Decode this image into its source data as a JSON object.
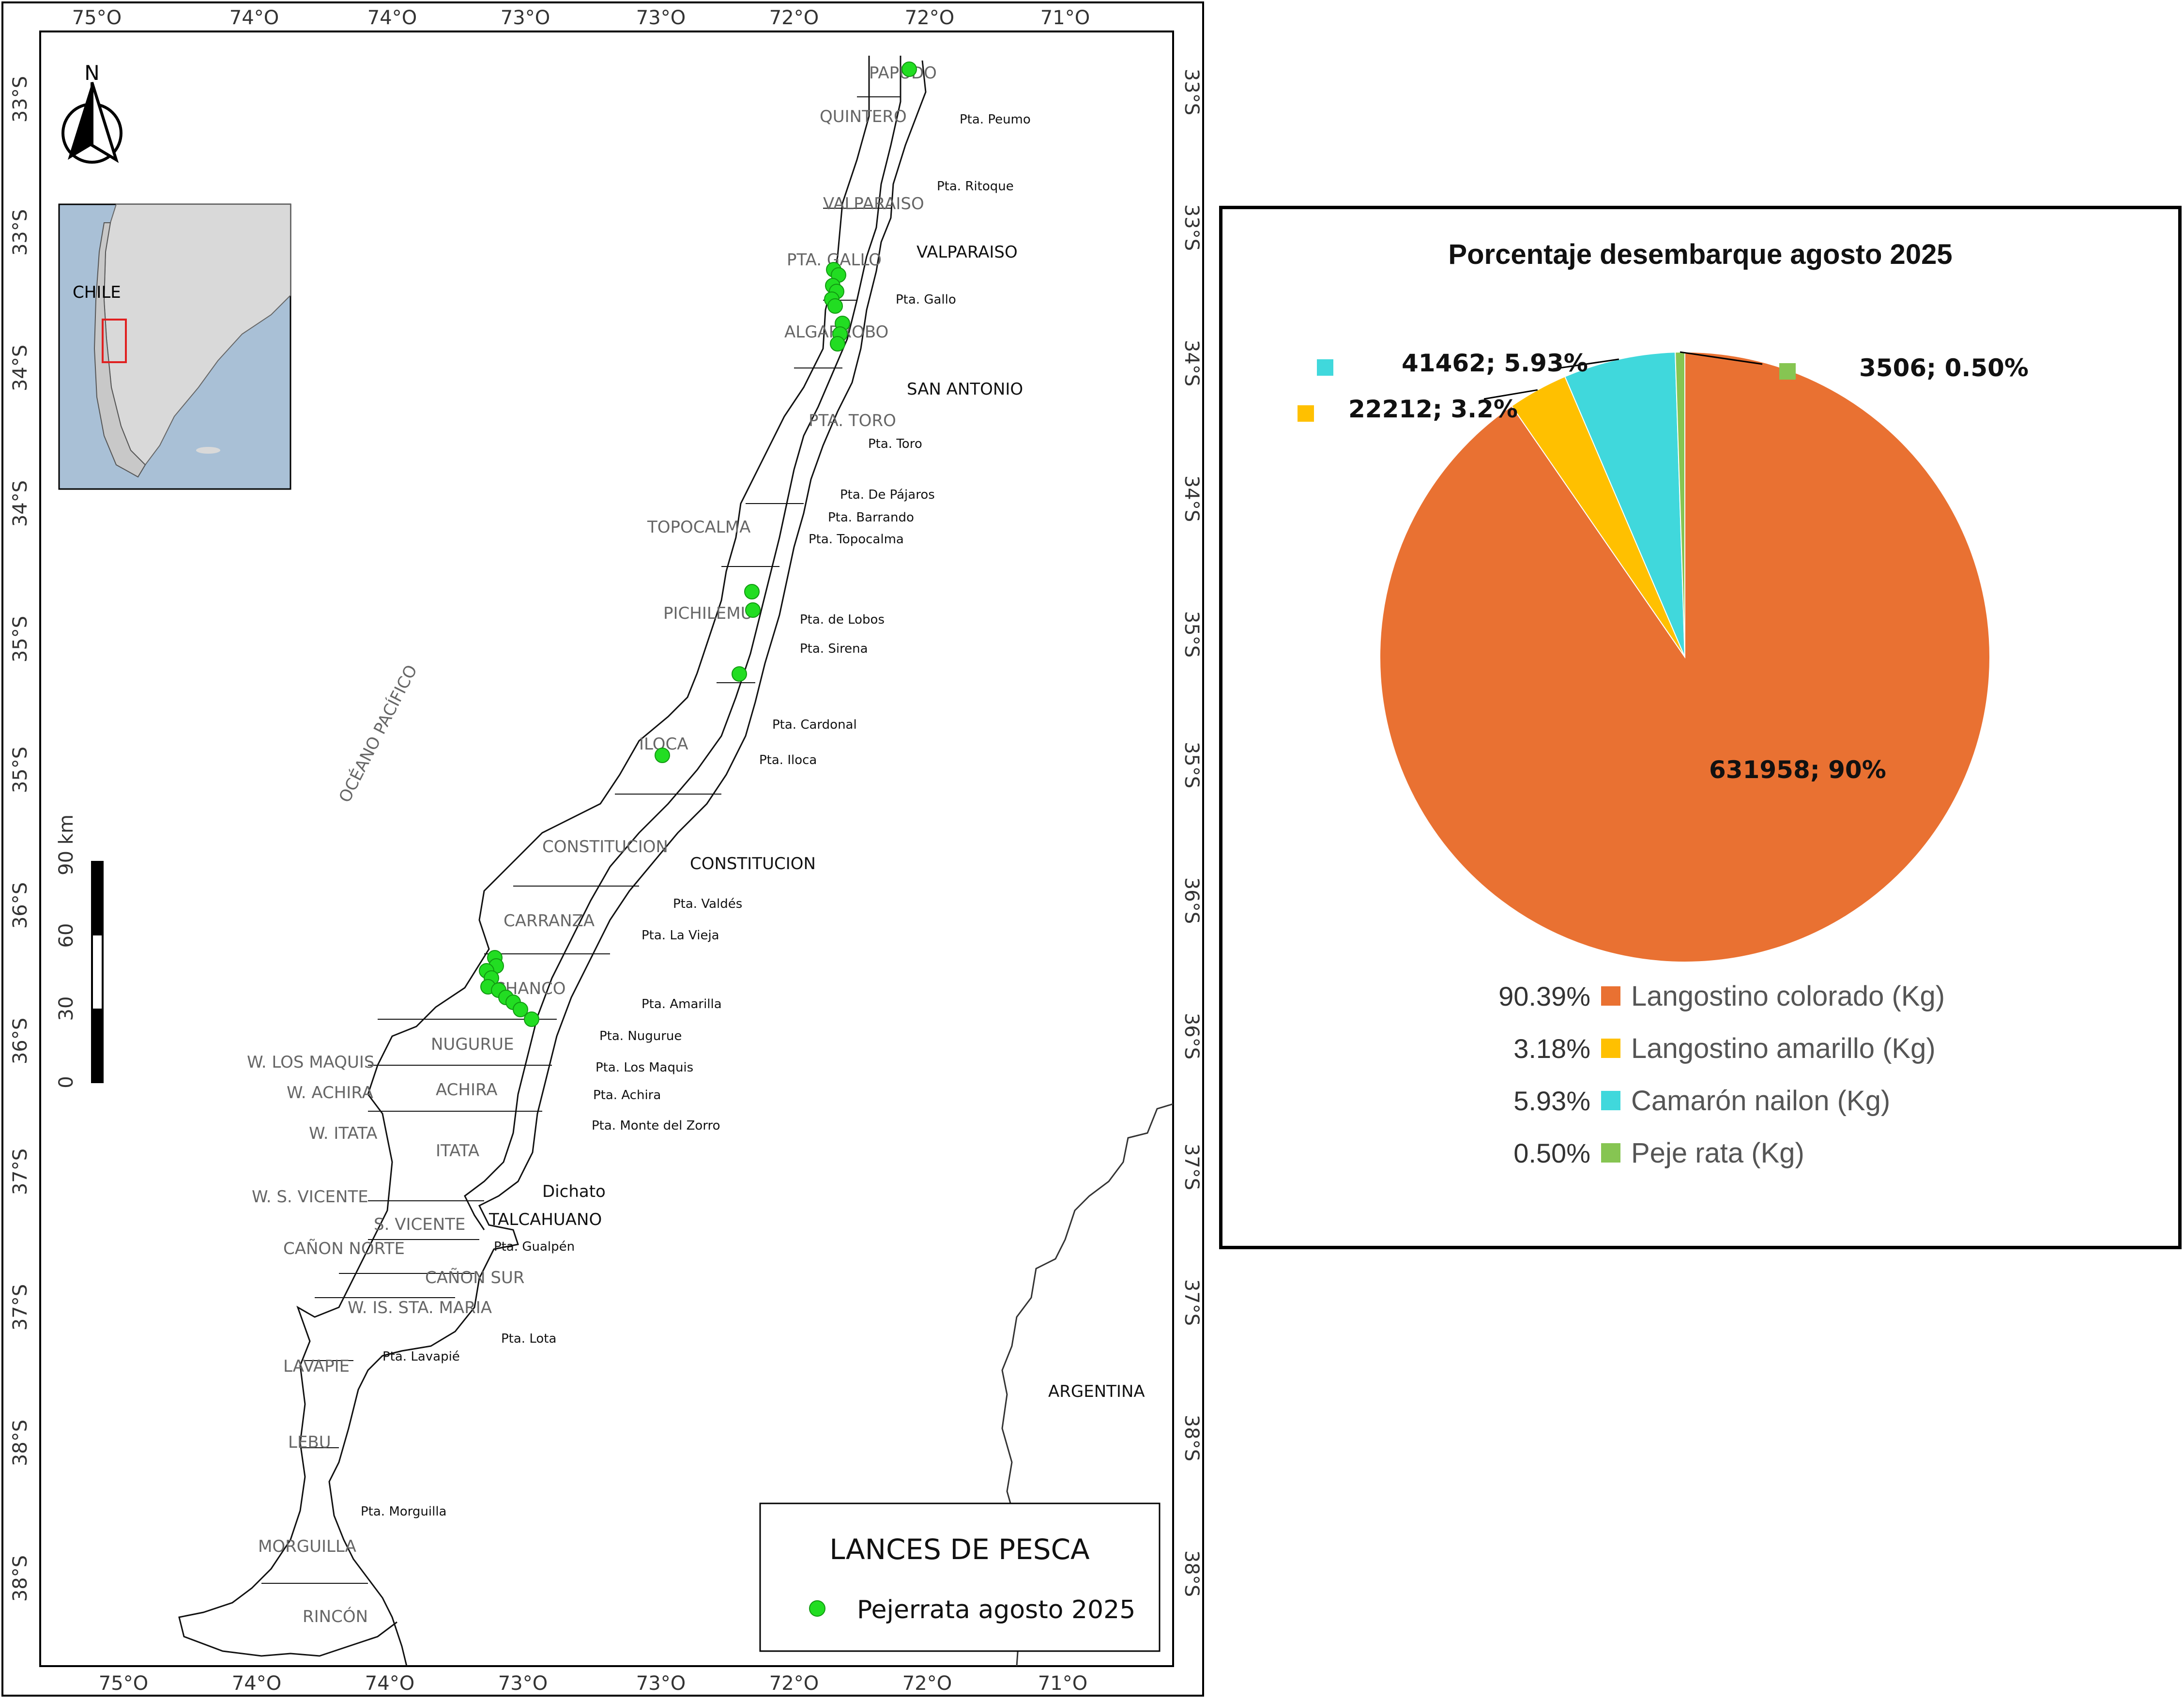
{
  "map": {
    "ocean_label": "OCÉANO PACÍFICO",
    "argentina_label": "ARGENTINA",
    "inset_country_label": "CHILE",
    "north_label": "N",
    "scale": {
      "unit": "km",
      "ticks": [
        "0",
        "30",
        "60",
        "90 km"
      ]
    },
    "lon_labels": [
      "75°O",
      "74°O",
      "74°O",
      "73°O",
      "73°O",
      "72°O",
      "72°O",
      "71°O"
    ],
    "lon_labels_bottom": [
      "75°O",
      "74°O",
      "74°O",
      "73°O",
      "73°O",
      "72°O",
      "72°O",
      "71°O"
    ],
    "lat_labels": [
      "33°S",
      "33°S",
      "34°S",
      "34°S",
      "35°S",
      "35°S",
      "36°S",
      "36°S",
      "37°S",
      "37°S",
      "38°S",
      "38°S"
    ],
    "zones": [
      "PAPUDO",
      "QUINTERO",
      "VALPARAISO",
      "PTA. GALLO",
      "ALGARROBO",
      "PTA. TORO",
      "TOPOCALMA",
      "PICHILEMU",
      "ILOCA",
      "CONSTITUCION",
      "CARRANZA",
      "CHANCO",
      "NUGURUE",
      "W. LOS MAQUIS",
      "W. ACHIRA",
      "ACHIRA",
      "W. ITATA",
      "ITATA",
      "W. S. VICENTE",
      "S. VICENTE",
      "CAÑON NORTE",
      "CAÑON SUR",
      "W. IS. STA. MARIA",
      "LAVAPIE",
      "LEBU",
      "MORGUILLA",
      "RINCÓN"
    ],
    "cities": [
      "VALPARAISO",
      "SAN ANTONIO",
      "CONSTITUCION",
      "TALCAHUANO",
      "Dichato"
    ],
    "puntas": [
      "Pta. Peumo",
      "Pta. Ritoque",
      "Pta. Gallo",
      "Pta. Toro",
      "Pta. De Pájaros",
      "Pta. Barrando",
      "Pta. Topocalma",
      "Pta. de Lobos",
      "Pta. Sirena",
      "Pta. Cardonal",
      "Pta. Iloca",
      "Pta. Valdés",
      "Pta. La Vieja",
      "Pta. Amarilla",
      "Pta. Nugurue",
      "Pta. Los Maquis",
      "Pta. Achira",
      "Pta. Monte del Zorro",
      "Pta. Gualpén",
      "Pta. Lota",
      "Pta. Lavapié",
      "Pta. Morguilla"
    ],
    "legend": {
      "title": "LANCES DE PESCA",
      "item": "Pejerrata agosto 2025"
    },
    "colors": {
      "points": "#22dd22",
      "inset_box": "#e02020",
      "land": "#d9d9d9",
      "sea": "#a9c0d6"
    }
  },
  "chart_data": {
    "type": "pie",
    "title": "Porcentaje desembarque agosto 2025",
    "slices": [
      {
        "name": "Langostino colorado (Kg)",
        "value": 631958,
        "percent": 90.39,
        "data_label": "631958; 90%",
        "legend_pct": "90.39%",
        "color": "#e97132"
      },
      {
        "name": "Langostino amarillo (Kg)",
        "value": 22212,
        "percent": 3.18,
        "data_label": "22212; 3.2%",
        "legend_pct": "3.18%",
        "color": "#ffc000"
      },
      {
        "name": "Camarón nailon (Kg)",
        "value": 41462,
        "percent": 5.93,
        "data_label": "41462; 5.93%",
        "legend_pct": "5.93%",
        "color": "#40d8dc"
      },
      {
        "name": "Peje rata (Kg)",
        "value": 3506,
        "percent": 0.5,
        "data_label": "3506; 0.50%",
        "legend_pct": "0.50%",
        "color": "#86c552"
      }
    ],
    "legend_position": "bottom"
  }
}
